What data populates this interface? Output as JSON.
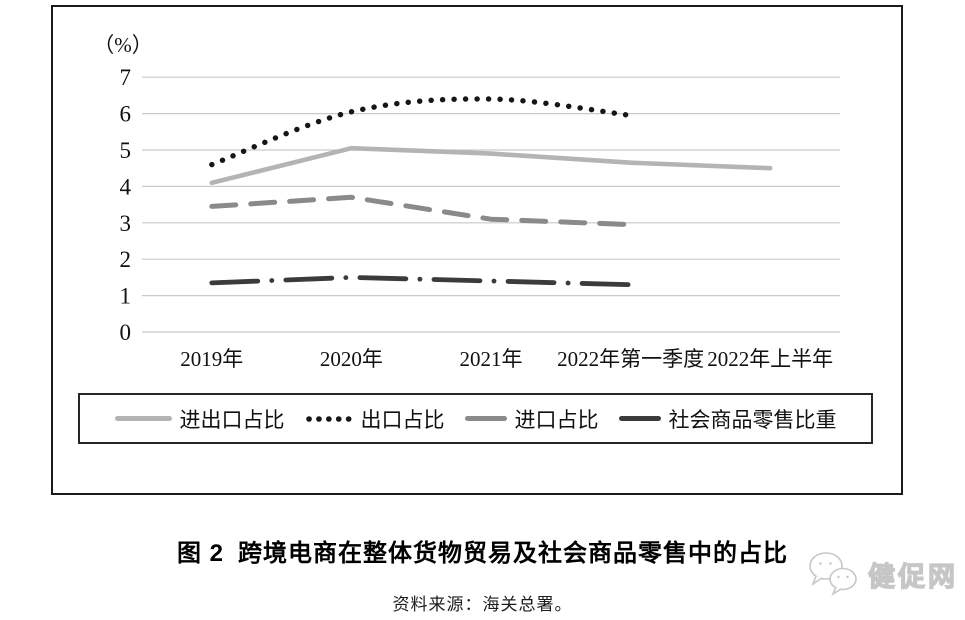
{
  "chart_data": {
    "type": "line",
    "title": "跨境电商在整体货物贸易及社会商品零售中的占比",
    "categories": [
      "2019年",
      "2020年",
      "2021年",
      "2022年第一季度",
      "2022年上半年"
    ],
    "series": [
      {
        "name": "进出口占比",
        "values": [
          4.1,
          5.05,
          4.9,
          4.65,
          4.5
        ],
        "color": "#b4b4b4",
        "style": "solid",
        "smooth": false
      },
      {
        "name": "出口占比",
        "values": [
          4.6,
          6.05,
          6.4,
          5.95,
          null
        ],
        "color": "#161616",
        "style": "dotted",
        "smooth": true
      },
      {
        "name": "进口占比",
        "values": [
          3.45,
          3.7,
          3.1,
          2.95,
          null
        ],
        "color": "#8a8a8a",
        "style": "dashed",
        "smooth": false
      },
      {
        "name": "社会商品零售比重",
        "values": [
          1.35,
          1.5,
          1.4,
          1.3,
          null
        ],
        "color": "#3b3b3b",
        "style": "dashdot",
        "smooth": false
      }
    ],
    "ylabel": "（%）",
    "ylim": [
      0,
      7
    ],
    "ytick_step": 1,
    "grid": true,
    "gridline_color": "#c9c9c9",
    "legend_position": "bottom"
  },
  "caption": {
    "figure_label": "图 2",
    "title": "跨境电商在整体货物贸易及社会商品零售中的占比"
  },
  "source": {
    "text": "资料来源：海关总署。"
  },
  "watermark": {
    "text": "健促网",
    "icon": "wechat-chat-bubbles-icon",
    "color": "#c5c5c5"
  }
}
